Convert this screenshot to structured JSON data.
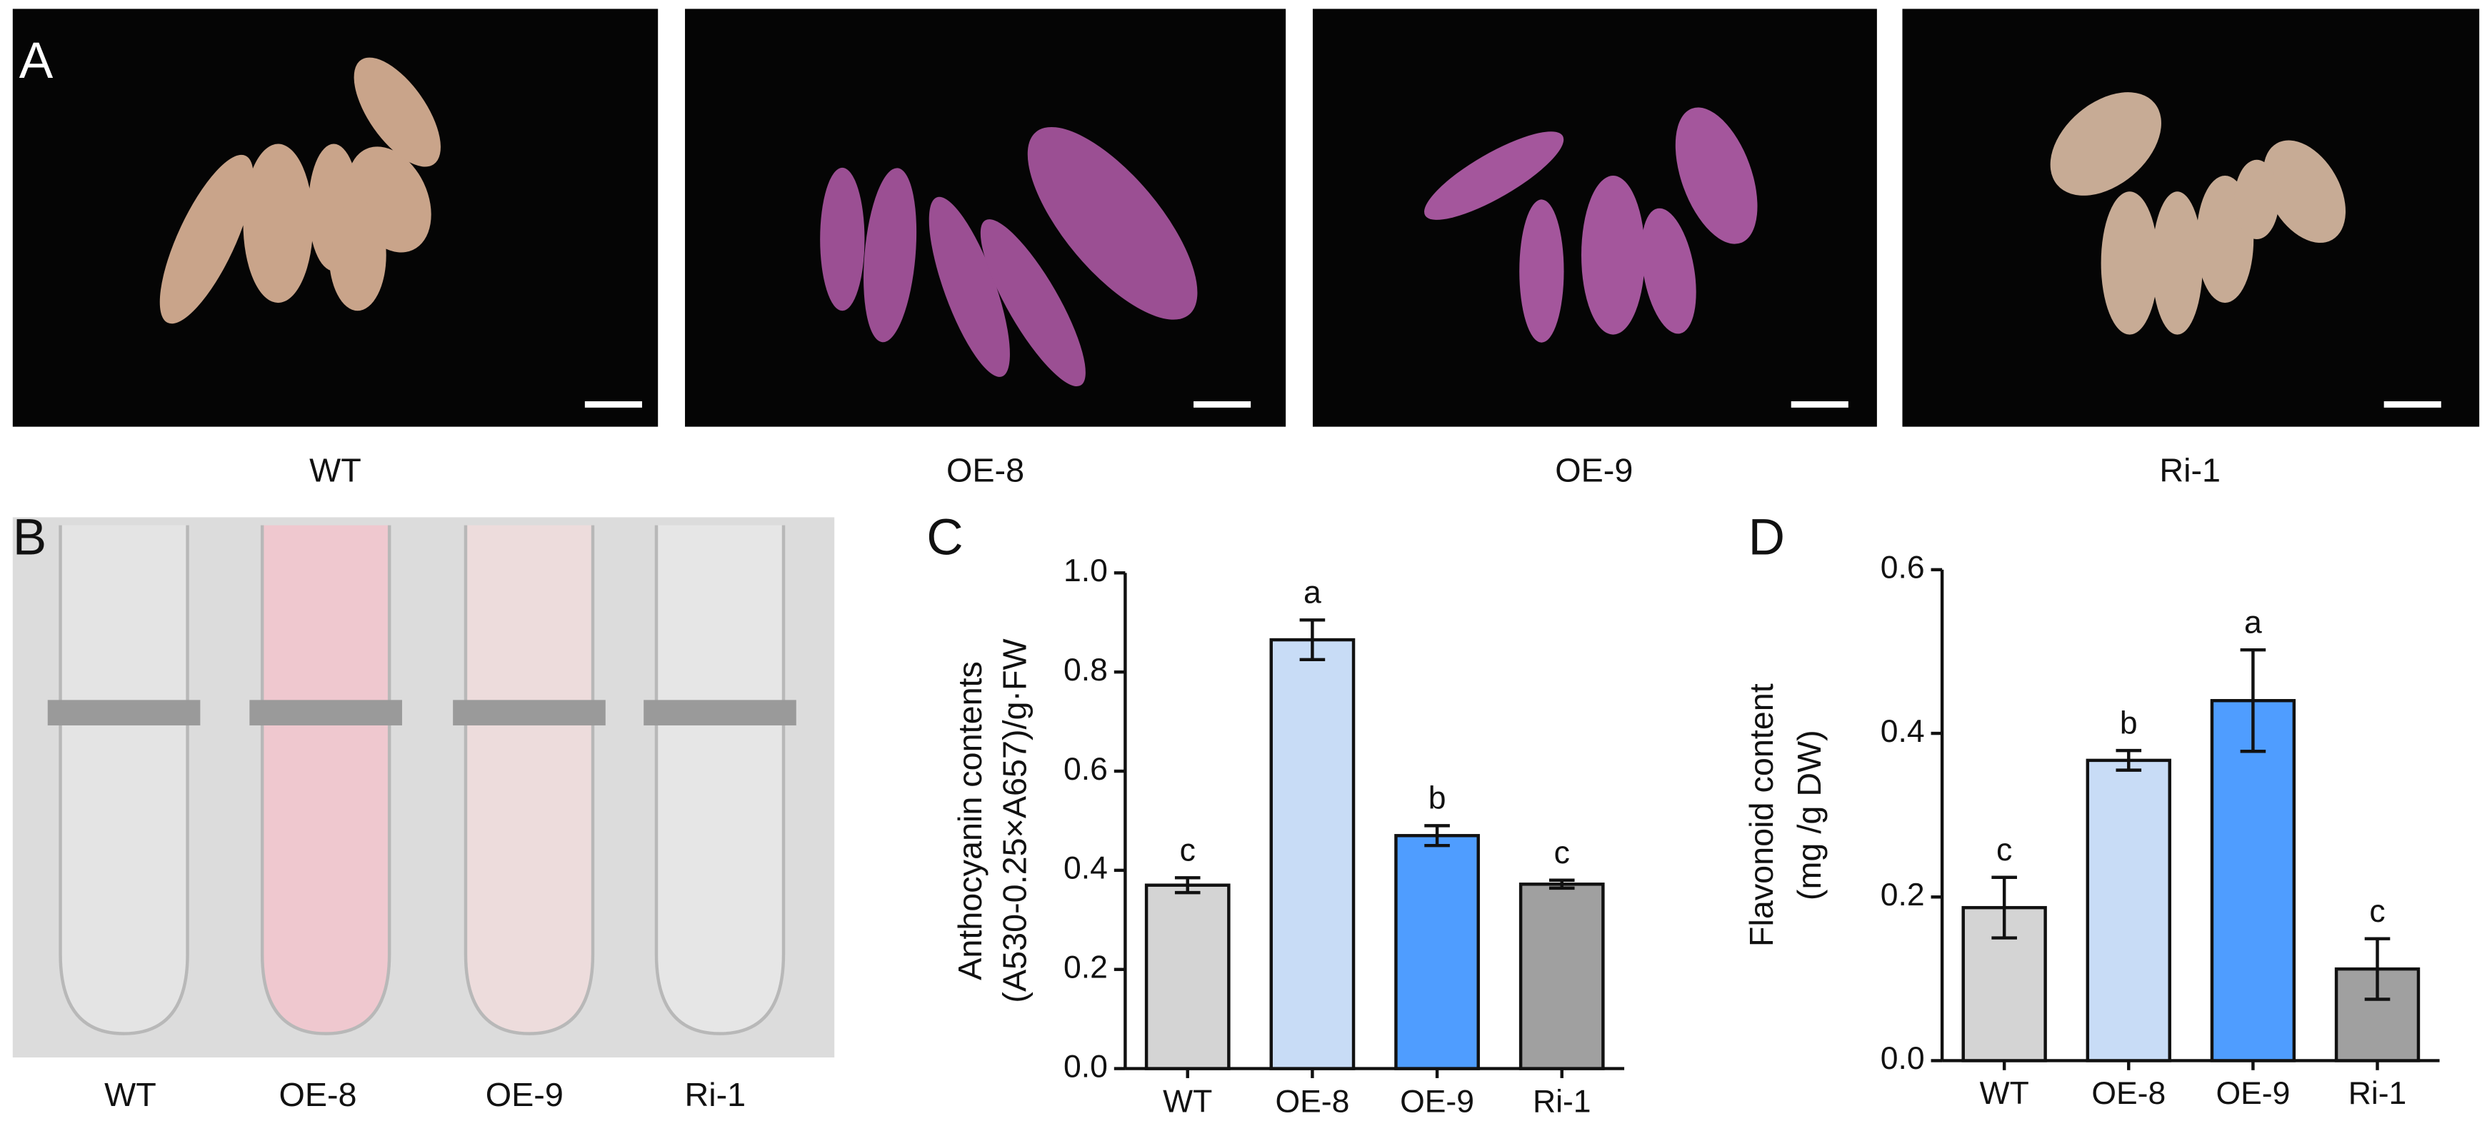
{
  "panel_labels": [
    "A",
    "B",
    "C",
    "D"
  ],
  "photo_labels": [
    "WT",
    "OE-8",
    "OE-9",
    "Ri-1"
  ],
  "tube_labels": [
    "WT",
    "OE-8",
    "OE-9",
    "Ri-1"
  ],
  "chart_data": [
    {
      "type": "bar",
      "ylabel": [
        "Anthocyanin contents",
        "(A530-0.25×A657)/g·FW"
      ],
      "categories": [
        "WT",
        "OE-8",
        "OE-9",
        "Ri-1"
      ],
      "values": [
        0.37,
        0.865,
        0.47,
        0.372
      ],
      "errors": [
        0.015,
        0.04,
        0.02,
        0.008
      ],
      "letters": [
        "c",
        "a",
        "b",
        "c"
      ],
      "colors": [
        "#d4d4d4",
        "#c8dcf6",
        "#4f9dff",
        "#a0a0a0"
      ],
      "ylim": [
        0,
        1
      ],
      "yticks": [
        {
          "value": 0,
          "label": "0.0"
        },
        0.2,
        0.4,
        0.6,
        0.8,
        {
          "value": 1,
          "label": "1.0"
        }
      ]
    },
    {
      "type": "bar",
      "ylabel": [
        "Flavonoid content",
        "(mg /g DW)"
      ],
      "categories": [
        "WT",
        "OE-8",
        "OE-9",
        "Ri-1"
      ],
      "values": [
        0.187,
        0.367,
        0.44,
        0.112
      ],
      "errors": [
        0.037,
        0.012,
        0.062,
        0.037
      ],
      "letters": [
        "c",
        "b",
        "a",
        "c"
      ],
      "colors": [
        "#d4d4d4",
        "#c8dcf6",
        "#4f9dff",
        "#a0a0a0"
      ],
      "ylim": [
        0,
        0.6
      ],
      "yticks": [
        {
          "value": 0,
          "label": "0.0"
        },
        0.2,
        0.4,
        0.6
      ]
    }
  ]
}
